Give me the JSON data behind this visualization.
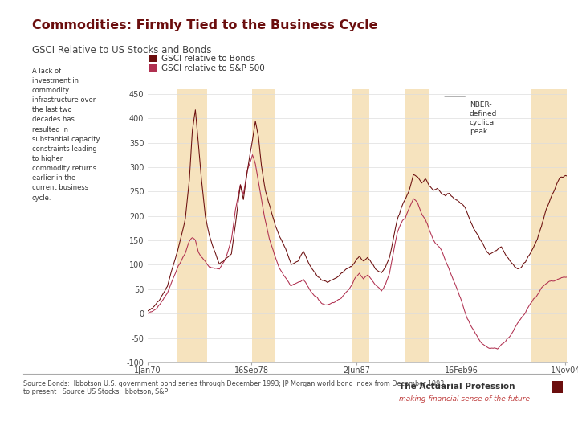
{
  "title": "Commodities: Firmly Tied to the Business Cycle",
  "subtitle": "GSCI Relative to US Stocks and Bonds",
  "title_color": "#6B0E0E",
  "subtitle_color": "#444444",
  "line1_label": "GSCI relative to Bonds",
  "line2_label": "GSCI relative to S&P 500",
  "line_color1": "#6B0E0E",
  "line_color2": "#B03050",
  "nber_color": "#F5DEB3",
  "nber_alpha": 0.85,
  "ylim": [
    -100,
    460
  ],
  "yticks": [
    -100,
    -50,
    0,
    50,
    100,
    150,
    200,
    250,
    300,
    350,
    400,
    450
  ],
  "xlabel_ticks": [
    "1Jan70",
    "16Sep78",
    "2Jun87",
    "16Feb96",
    "1Nov04"
  ],
  "source_text": "Source Bonds:  Ibbotson U.S. government bond series through December 1993; JP Morgan world bond index from December 1993\nto present   Source US Stocks: Ibbotson, S&P",
  "nber_peaks_label": "NBER-\ndefined\ncyclical\npeak",
  "background_color": "#FFFFFF",
  "legend_box_color1": "#6B0E0E",
  "legend_box_color2": "#B03050",
  "actuarial_text": "The Actuarial Profession",
  "actuarial_sub": "making financial sense of the future"
}
